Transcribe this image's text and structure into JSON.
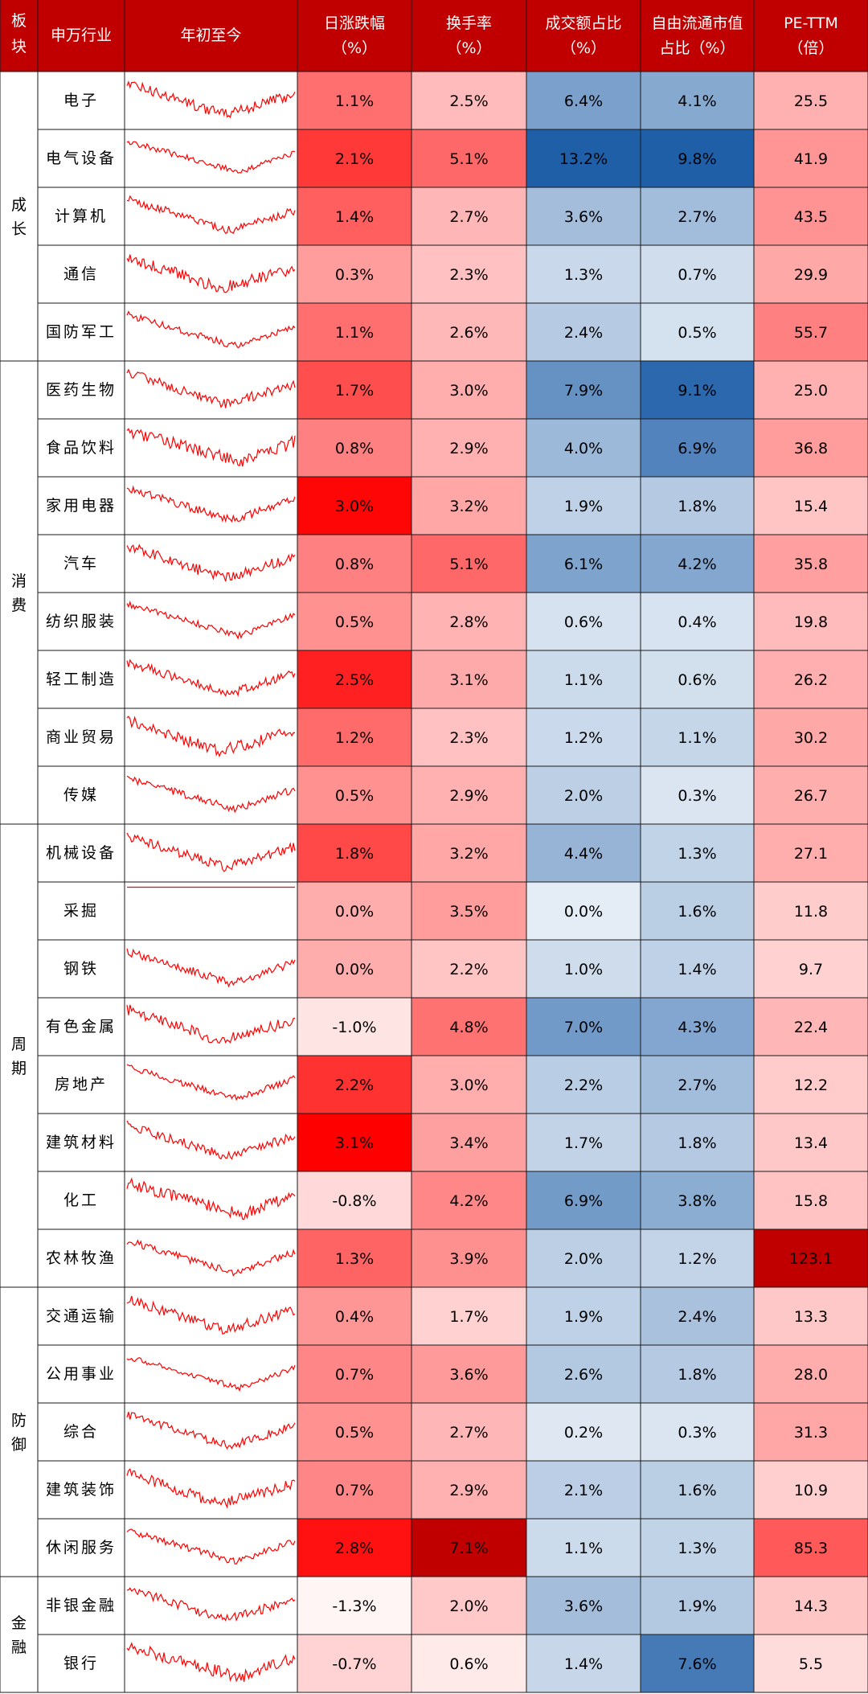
{
  "chart_data": {
    "type": "table",
    "columns": [
      {
        "label1": "板",
        "label2": "块"
      },
      {
        "label1": "申万行业",
        "label2": ""
      },
      {
        "label1": "年初至今",
        "label2": ""
      },
      {
        "label1": "日涨跌幅",
        "label2": "（%）"
      },
      {
        "label1": "换手率",
        "label2": "（%）"
      },
      {
        "label1": "成交额占比",
        "label2": "（%）"
      },
      {
        "label1": "自由流通市值",
        "label2": "占比（%）"
      },
      {
        "label1": "PE-TTM",
        "label2": "（倍）"
      }
    ],
    "sectors": [
      {
        "name": "成长",
        "rows": [
          0,
          4
        ]
      },
      {
        "name": "消费",
        "rows": [
          5,
          12
        ]
      },
      {
        "name": "周期",
        "rows": [
          13,
          20
        ]
      },
      {
        "name": "防御",
        "rows": [
          21,
          25
        ]
      },
      {
        "name": "金融",
        "rows": [
          26,
          27
        ]
      }
    ],
    "rows": [
      {
        "industry": "电子",
        "daily_change": "1.1%",
        "turnover": "2.5%",
        "volume_share": "6.4%",
        "float_cap_share": "4.1%",
        "pe_ttm": "25.5"
      },
      {
        "industry": "电气设备",
        "daily_change": "2.1%",
        "turnover": "5.1%",
        "volume_share": "13.2%",
        "float_cap_share": "9.8%",
        "pe_ttm": "41.9"
      },
      {
        "industry": "计算机",
        "daily_change": "1.4%",
        "turnover": "2.7%",
        "volume_share": "3.6%",
        "float_cap_share": "2.7%",
        "pe_ttm": "43.5"
      },
      {
        "industry": "通信",
        "daily_change": "0.3%",
        "turnover": "2.3%",
        "volume_share": "1.3%",
        "float_cap_share": "0.7%",
        "pe_ttm": "29.9"
      },
      {
        "industry": "国防军工",
        "daily_change": "1.1%",
        "turnover": "2.6%",
        "volume_share": "2.4%",
        "float_cap_share": "0.5%",
        "pe_ttm": "55.7"
      },
      {
        "industry": "医药生物",
        "daily_change": "1.7%",
        "turnover": "3.0%",
        "volume_share": "7.9%",
        "float_cap_share": "9.1%",
        "pe_ttm": "25.0"
      },
      {
        "industry": "食品饮料",
        "daily_change": "0.8%",
        "turnover": "2.9%",
        "volume_share": "4.0%",
        "float_cap_share": "6.9%",
        "pe_ttm": "36.8"
      },
      {
        "industry": "家用电器",
        "daily_change": "3.0%",
        "turnover": "3.2%",
        "volume_share": "1.9%",
        "float_cap_share": "1.8%",
        "pe_ttm": "15.4"
      },
      {
        "industry": "汽车",
        "daily_change": "0.8%",
        "turnover": "5.1%",
        "volume_share": "6.1%",
        "float_cap_share": "4.2%",
        "pe_ttm": "35.8"
      },
      {
        "industry": "纺织服装",
        "daily_change": "0.5%",
        "turnover": "2.8%",
        "volume_share": "0.6%",
        "float_cap_share": "0.4%",
        "pe_ttm": "19.8"
      },
      {
        "industry": "轻工制造",
        "daily_change": "2.5%",
        "turnover": "3.1%",
        "volume_share": "1.1%",
        "float_cap_share": "0.6%",
        "pe_ttm": "26.2"
      },
      {
        "industry": "商业贸易",
        "daily_change": "1.2%",
        "turnover": "2.3%",
        "volume_share": "1.2%",
        "float_cap_share": "1.1%",
        "pe_ttm": "30.2"
      },
      {
        "industry": "传媒",
        "daily_change": "0.5%",
        "turnover": "2.9%",
        "volume_share": "2.0%",
        "float_cap_share": "0.3%",
        "pe_ttm": "26.7"
      },
      {
        "industry": "机械设备",
        "daily_change": "1.8%",
        "turnover": "3.2%",
        "volume_share": "4.4%",
        "float_cap_share": "1.3%",
        "pe_ttm": "27.1"
      },
      {
        "industry": "采掘",
        "daily_change": "0.0%",
        "turnover": "3.5%",
        "volume_share": "0.0%",
        "float_cap_share": "1.6%",
        "pe_ttm": "11.8"
      },
      {
        "industry": "钢铁",
        "daily_change": "0.0%",
        "turnover": "2.2%",
        "volume_share": "1.0%",
        "float_cap_share": "1.4%",
        "pe_ttm": "9.7"
      },
      {
        "industry": "有色金属",
        "daily_change": "-1.0%",
        "turnover": "4.8%",
        "volume_share": "7.0%",
        "float_cap_share": "4.3%",
        "pe_ttm": "22.4"
      },
      {
        "industry": "房地产",
        "daily_change": "2.2%",
        "turnover": "3.0%",
        "volume_share": "2.2%",
        "float_cap_share": "2.7%",
        "pe_ttm": "12.2"
      },
      {
        "industry": "建筑材料",
        "daily_change": "3.1%",
        "turnover": "3.4%",
        "volume_share": "1.7%",
        "float_cap_share": "1.8%",
        "pe_ttm": "13.4"
      },
      {
        "industry": "化工",
        "daily_change": "-0.8%",
        "turnover": "4.2%",
        "volume_share": "6.9%",
        "float_cap_share": "3.8%",
        "pe_ttm": "15.8"
      },
      {
        "industry": "农林牧渔",
        "daily_change": "1.3%",
        "turnover": "3.9%",
        "volume_share": "2.0%",
        "float_cap_share": "1.2%",
        "pe_ttm": "123.1"
      },
      {
        "industry": "交通运输",
        "daily_change": "0.4%",
        "turnover": "1.7%",
        "volume_share": "1.9%",
        "float_cap_share": "2.4%",
        "pe_ttm": "13.3"
      },
      {
        "industry": "公用事业",
        "daily_change": "0.7%",
        "turnover": "3.6%",
        "volume_share": "2.6%",
        "float_cap_share": "1.8%",
        "pe_ttm": "28.0"
      },
      {
        "industry": "综合",
        "daily_change": "0.5%",
        "turnover": "2.7%",
        "volume_share": "0.2%",
        "float_cap_share": "0.3%",
        "pe_ttm": "31.3"
      },
      {
        "industry": "建筑装饰",
        "daily_change": "0.7%",
        "turnover": "2.9%",
        "volume_share": "2.1%",
        "float_cap_share": "1.6%",
        "pe_ttm": "10.9"
      },
      {
        "industry": "休闲服务",
        "daily_change": "2.8%",
        "turnover": "7.1%",
        "volume_share": "1.1%",
        "float_cap_share": "1.3%",
        "pe_ttm": "85.3"
      },
      {
        "industry": "非银金融",
        "daily_change": "-1.3%",
        "turnover": "2.0%",
        "volume_share": "3.6%",
        "float_cap_share": "1.9%",
        "pe_ttm": "14.3"
      },
      {
        "industry": "银行",
        "daily_change": "-0.7%",
        "turnover": "0.6%",
        "volume_share": "1.4%",
        "float_cap_share": "7.6%",
        "pe_ttm": "5.5"
      }
    ]
  },
  "colors": {
    "header_bg": "#c00000",
    "header_text": "#ffffff",
    "red_max": "#ff0000",
    "blue_max": "#1f5fa8",
    "sparkline": "#ff0000",
    "grid": "#1a1a1a"
  }
}
